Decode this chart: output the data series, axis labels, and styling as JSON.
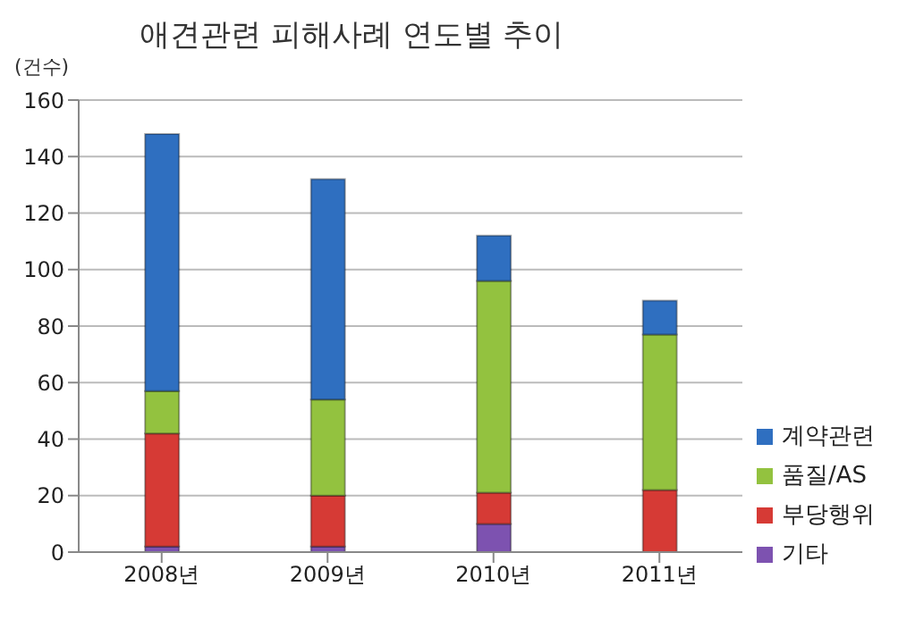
{
  "chart_data": {
    "type": "bar",
    "title": "애견관련 피해사례 연도별 추이",
    "ylabel": "(건수)",
    "categories": [
      "2008년",
      "2009년",
      "2010년",
      "2011년"
    ],
    "stacked": true,
    "series": [
      {
        "name": "기타",
        "color": "#7d52b0",
        "values": [
          2,
          2,
          10,
          0
        ]
      },
      {
        "name": "부당행위",
        "color": "#d63a35",
        "values": [
          40,
          18,
          11,
          22
        ]
      },
      {
        "name": "품질/AS",
        "color": "#93c23f",
        "values": [
          15,
          34,
          75,
          55
        ]
      },
      {
        "name": "계약관련",
        "color": "#2f6fc0",
        "values": [
          91,
          78,
          16,
          12
        ]
      }
    ],
    "ylim": [
      0,
      160
    ],
    "yticks": [
      0,
      20,
      40,
      60,
      80,
      100,
      120,
      140,
      160
    ],
    "grid": "y",
    "legend": "right"
  }
}
